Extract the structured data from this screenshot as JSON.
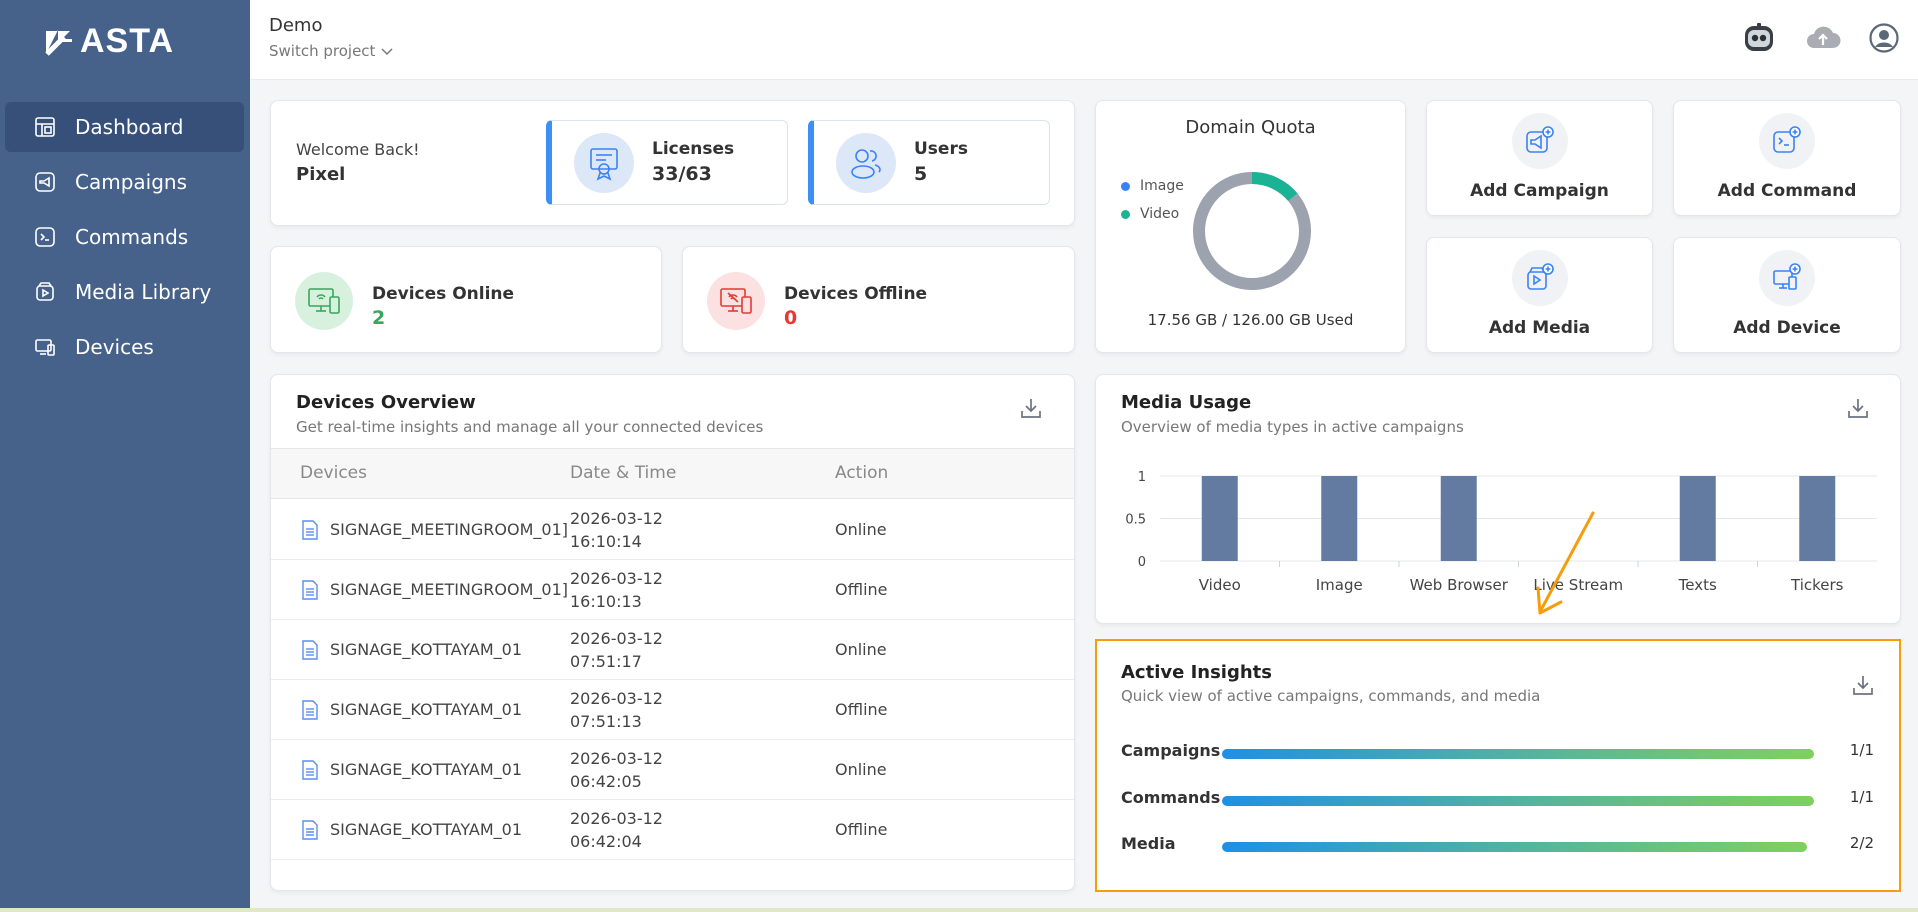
{
  "brand": {
    "name": "ASTA"
  },
  "sidebar": {
    "items": [
      {
        "label": "Dashboard",
        "icon": "dashboard-icon",
        "active": true
      },
      {
        "label": "Campaigns",
        "icon": "megaphone-icon"
      },
      {
        "label": "Commands",
        "icon": "terminal-icon"
      },
      {
        "label": "Media Library",
        "icon": "media-icon"
      },
      {
        "label": "Devices",
        "icon": "devices-icon"
      }
    ]
  },
  "header": {
    "project": "Demo",
    "switch_label": "Switch project",
    "icons": [
      "robot-icon",
      "cloud-upload-icon",
      "user-avatar-icon"
    ]
  },
  "welcome": {
    "label": "Welcome Back!",
    "name": "Pixel"
  },
  "stats": {
    "licenses": {
      "label": "Licenses",
      "value": "33/63"
    },
    "users": {
      "label": "Users",
      "value": "5"
    }
  },
  "devices_status": {
    "online": {
      "label": "Devices Online",
      "value": "2",
      "color": "#3aa55c"
    },
    "offline": {
      "label": "Devices Offline",
      "value": "0",
      "color": "#e53935"
    }
  },
  "quota": {
    "title": "Domain Quota",
    "legend": [
      {
        "label": "Image",
        "color": "#3b82f6"
      },
      {
        "label": "Video",
        "color": "#1ab394"
      }
    ],
    "used_fraction": 0.1393,
    "used_text": "17.56 GB / 126.00 GB Used"
  },
  "quick_actions": [
    {
      "label": "Add Campaign",
      "icon": "add-campaign-icon"
    },
    {
      "label": "Add Command",
      "icon": "add-command-icon"
    },
    {
      "label": "Add Media",
      "icon": "add-media-icon"
    },
    {
      "label": "Add Device",
      "icon": "add-device-icon"
    }
  ],
  "devices_overview": {
    "title": "Devices Overview",
    "subtitle": "Get real-time insights and manage all your connected devices",
    "columns": [
      "Devices",
      "Date & Time",
      "Action"
    ],
    "rows": [
      {
        "device": "SIGNAGE_MEETINGROOM_01]",
        "date": "2026-03-12",
        "time": "16:10:14",
        "action": "Online"
      },
      {
        "device": "SIGNAGE_MEETINGROOM_01]",
        "date": "2026-03-12",
        "time": "16:10:13",
        "action": "Offline"
      },
      {
        "device": "SIGNAGE_KOTTAYAM_01",
        "date": "2026-03-12",
        "time": "07:51:17",
        "action": "Online"
      },
      {
        "device": "SIGNAGE_KOTTAYAM_01",
        "date": "2026-03-12",
        "time": "07:51:13",
        "action": "Offline"
      },
      {
        "device": "SIGNAGE_KOTTAYAM_01",
        "date": "2026-03-12",
        "time": "06:42:05",
        "action": "Online"
      },
      {
        "device": "SIGNAGE_KOTTAYAM_01",
        "date": "2026-03-12",
        "time": "06:42:04",
        "action": "Offline"
      }
    ]
  },
  "media_usage": {
    "title": "Media Usage",
    "subtitle": "Overview of media types in active campaigns"
  },
  "chart_data": {
    "type": "bar",
    "categories": [
      "Video",
      "Image",
      "Web Browser",
      "Live Stream",
      "Texts",
      "Tickers"
    ],
    "values": [
      1,
      1,
      1,
      0,
      1,
      1
    ],
    "yticks": [
      "0",
      "0.5",
      "1"
    ],
    "ylim": [
      0,
      1
    ],
    "grid": true,
    "bar_color": "#637ba0"
  },
  "insights": {
    "title": "Active Insights",
    "subtitle": "Quick view of active campaigns, commands, and media",
    "rows": [
      {
        "label": "Campaigns",
        "value": "1/1",
        "fraction": 1
      },
      {
        "label": "Commands",
        "value": "1/1",
        "fraction": 1
      },
      {
        "label": "Media",
        "value": "2/2",
        "fraction": 1
      }
    ],
    "highlight_color": "#f59e0b"
  }
}
